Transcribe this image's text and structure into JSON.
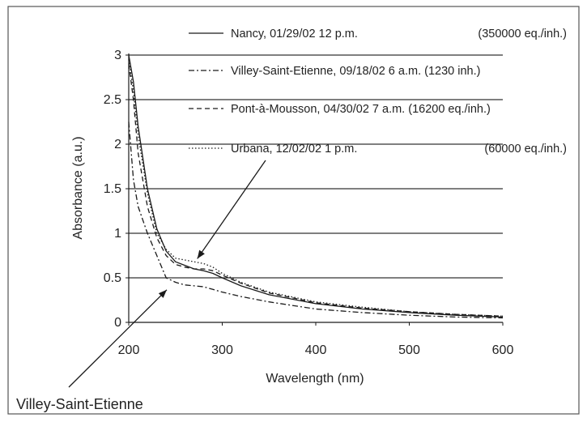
{
  "chart_data": {
    "type": "line",
    "xlabel": "Wavelength (nm)",
    "ylabel": "Absorbance (a.u.)",
    "xlim": [
      200,
      600
    ],
    "ylim": [
      0,
      3
    ],
    "xticks": [
      200,
      300,
      400,
      500,
      600
    ],
    "yticks": [
      0,
      0.5,
      1,
      1.5,
      2,
      2.5,
      3
    ],
    "ytick_labels": [
      "0",
      "0.5",
      "1",
      "1.5",
      "2",
      "2.5",
      "3"
    ],
    "grid": "horizontal",
    "legend_position": "top-right",
    "series": [
      {
        "name": "Nancy, 01/29/02 12 p.m.",
        "legend_extra": "(350000 eq./inh.)",
        "style": "solid",
        "x": [
          200,
          205,
          210,
          220,
          230,
          240,
          250,
          260,
          270,
          280,
          290,
          300,
          320,
          350,
          400,
          450,
          500,
          550,
          600
        ],
        "y": [
          3.0,
          2.7,
          2.2,
          1.5,
          1.05,
          0.8,
          0.68,
          0.64,
          0.6,
          0.58,
          0.55,
          0.5,
          0.41,
          0.31,
          0.21,
          0.15,
          0.11,
          0.08,
          0.06
        ]
      },
      {
        "name": "Villey-Saint-Etienne, 09/18/02 6 a.m. (1230 inh.)",
        "legend_extra": "",
        "style": "dashdot",
        "x": [
          200,
          205,
          210,
          220,
          230,
          240,
          250,
          260,
          270,
          280,
          290,
          300,
          320,
          350,
          400,
          450,
          500,
          550,
          600
        ],
        "y": [
          2.25,
          1.6,
          1.3,
          1.0,
          0.75,
          0.5,
          0.45,
          0.42,
          0.41,
          0.4,
          0.37,
          0.34,
          0.29,
          0.23,
          0.15,
          0.11,
          0.08,
          0.06,
          0.05
        ]
      },
      {
        "name": "Pont-à-Mousson, 04/30/02 7 a.m. (16200 eq./inh.)",
        "legend_extra": "",
        "style": "dashed",
        "x": [
          200,
          205,
          210,
          220,
          230,
          240,
          250,
          260,
          270,
          280,
          290,
          300,
          320,
          350,
          400,
          450,
          500,
          550,
          600
        ],
        "y": [
          2.9,
          2.5,
          1.9,
          1.3,
          0.95,
          0.75,
          0.65,
          0.62,
          0.6,
          0.6,
          0.58,
          0.53,
          0.44,
          0.33,
          0.22,
          0.16,
          0.12,
          0.09,
          0.07
        ]
      },
      {
        "name": "Urbana, 12/02/02 1 p.m.",
        "legend_extra": "(60000 eq./inh.)",
        "style": "dotted",
        "x": [
          200,
          205,
          210,
          220,
          230,
          240,
          250,
          260,
          270,
          280,
          290,
          300,
          320,
          350,
          400,
          450,
          500,
          550,
          600
        ],
        "y": [
          2.95,
          2.6,
          2.1,
          1.45,
          1.0,
          0.82,
          0.72,
          0.7,
          0.68,
          0.66,
          0.62,
          0.55,
          0.45,
          0.34,
          0.23,
          0.17,
          0.12,
          0.09,
          0.07
        ]
      }
    ],
    "annotations": [
      {
        "text": "Villey-Saint-Etienne",
        "arrow_to_x": 245,
        "arrow_to_y": 0.42
      },
      {
        "text": "",
        "arrow_to_x": 282,
        "arrow_to_y": 0.66
      }
    ]
  },
  "colors": {
    "line": "#1a1a1a",
    "grid": "#333333",
    "text": "#222222",
    "frame": "#555555"
  }
}
